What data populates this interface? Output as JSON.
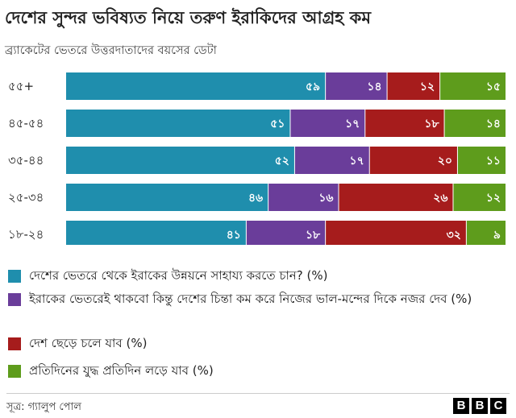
{
  "title": "দেশের সুন্দর ভবিষ্যত নিয়ে তরুণ ইরাকিদের আগ্রহ কম",
  "subtitle": "ব্র্যাকেটের ভেতরে উত্তরদাতাদের বয়সের ডেটা",
  "colors": {
    "stay_help": "#1f8ead",
    "stay_self": "#6a3d9a",
    "leave": "#a61c1c",
    "cope": "#5e9c1c"
  },
  "chart_data": {
    "type": "bar",
    "orientation": "horizontal",
    "stacked": true,
    "percent": true,
    "categories": [
      "৫৫+",
      "৪৫-৫৪",
      "৩৫-৪৪",
      "২৫-৩৪",
      "১৮-২৪"
    ],
    "series": [
      {
        "name": "দেশের ভেতরে থেকে ইরাকের উন্নয়নে সাহায্য করতে চান? (%)",
        "color": "#1f8ead",
        "values": [
          59,
          51,
          52,
          46,
          41
        ],
        "labels": [
          "৫৯",
          "৫১",
          "৫২",
          "৪৬",
          "৪১"
        ]
      },
      {
        "name": "ইরাকের ভেতরেই থাকবো কিন্তু দেশের চিন্তা কম করে নিজের ভাল-মন্দের দিকে নজর দেব (%)",
        "color": "#6a3d9a",
        "values": [
          14,
          17,
          17,
          16,
          18
        ],
        "labels": [
          "১৪",
          "১৭",
          "১৭",
          "১৬",
          "১৮"
        ]
      },
      {
        "name": "দেশ ছেড়ে চলে যাব (%)",
        "color": "#a61c1c",
        "values": [
          12,
          18,
          20,
          26,
          32
        ],
        "labels": [
          "১২",
          "১৮",
          "২০",
          "২৬",
          "৩২"
        ]
      },
      {
        "name": "প্রতিদিনের যুদ্ধ প্রতিদিন লড়ে যাব (%)",
        "color": "#5e9c1c",
        "values": [
          15,
          14,
          11,
          12,
          9
        ],
        "labels": [
          "১৫",
          "১৪",
          "১১",
          "১২",
          "৯"
        ]
      }
    ]
  },
  "legend": [
    {
      "label": "দেশের ভেতরে থেকে ইরাকের উন্নয়নে সাহায্য করতে চান? (%)"
    },
    {
      "label": "ইরাকের ভেতরেই থাকবো কিন্তু দেশের চিন্তা কম করে নিজের ভাল-মন্দের দিকে নজর দেব (%)"
    },
    {
      "label": "দেশ ছেড়ে চলে যাব (%)"
    },
    {
      "label": "প্রতিদিনের যুদ্ধ প্রতিদিন লড়ে যাব (%)"
    }
  ],
  "source": "সূত্র: গ্যালুপ পোল",
  "brand": [
    "B",
    "B",
    "C"
  ]
}
